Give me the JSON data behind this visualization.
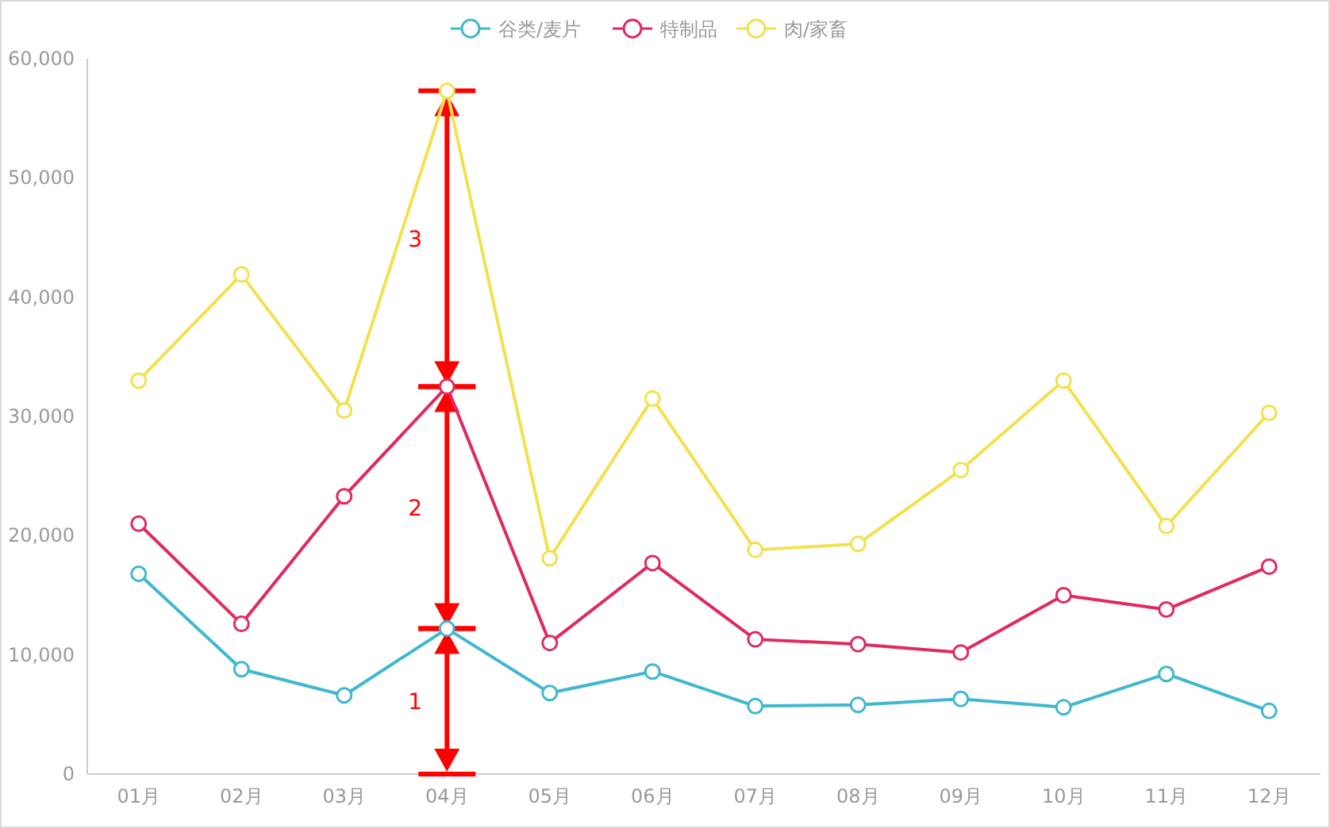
{
  "chart_data": {
    "type": "line",
    "categories": [
      "01月",
      "02月",
      "03月",
      "04月",
      "05月",
      "06月",
      "07月",
      "08月",
      "09月",
      "10月",
      "11月",
      "12月"
    ],
    "series": [
      {
        "name": "谷类/麦片",
        "color": "#40b7d0",
        "values": [
          16800,
          8800,
          6600,
          12200,
          6800,
          8600,
          5700,
          5800,
          6300,
          5600,
          8400,
          5300
        ]
      },
      {
        "name": "特制品",
        "color": "#e02a5f",
        "values": [
          21000,
          12600,
          23300,
          32500,
          11000,
          17700,
          11300,
          10900,
          10200,
          15000,
          13800,
          17400
        ]
      },
      {
        "name": "肉/家畜",
        "color": "#f3e04e",
        "values": [
          33000,
          41900,
          30500,
          57300,
          18100,
          31500,
          18800,
          19300,
          25500,
          33000,
          20800,
          30300
        ]
      }
    ],
    "ylim": [
      0,
      60000
    ],
    "yticks": [
      0,
      {
        "value": 10000,
        "label": "10,000"
      },
      {
        "value": 20000,
        "label": "20,000"
      },
      {
        "value": 30000,
        "label": "30,000"
      },
      {
        "value": 40000,
        "label": "40,000"
      },
      {
        "value": 50000,
        "label": "50,000"
      },
      {
        "value": 60000,
        "label": "60,000"
      }
    ],
    "annotations": [
      "1",
      "2",
      "3"
    ],
    "grid": false,
    "legend": "top",
    "marker": "circle",
    "line_style": "solid"
  }
}
